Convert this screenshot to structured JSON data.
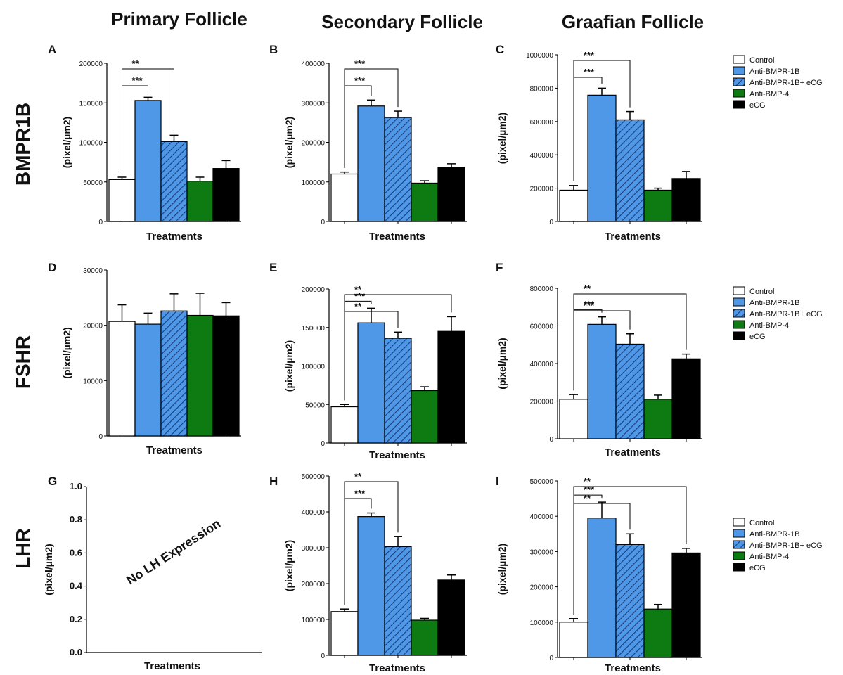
{
  "column_titles": [
    "Primary Follicle",
    "Secondary Follicle",
    "Graafian Follicle"
  ],
  "row_titles": [
    "BMPR1B",
    "FSHR",
    "LHR"
  ],
  "colors": {
    "Control": "#ffffff",
    "Anti-BMPR-1B": "#4f98e8",
    "Anti-BMPR-1B+ eCG": "#4f98e8",
    "Anti-BMP-4": "#0e7a12",
    "eCG": "#000000"
  },
  "legend": [
    "Control",
    "Anti-BMPR-1B",
    "Anti-BMPR-1B+ eCG",
    "Anti-BMP-4",
    "eCG"
  ],
  "chart_data": [
    {
      "panel": "A",
      "type": "bar",
      "xlabel": "Treatments",
      "ylabel": "(pixel/µm2)",
      "categories": [
        "Control",
        "Anti-BMPR-1B",
        "Anti-BMPR-1B+ eCG",
        "Anti-BMP-4",
        "eCG"
      ],
      "values": [
        53000,
        153000,
        101000,
        51000,
        67000
      ],
      "errors": [
        3000,
        4000,
        8000,
        5000,
        10000
      ],
      "ylim": [
        0,
        200000
      ],
      "yticks": [
        0,
        50000,
        100000,
        150000,
        200000
      ],
      "annotations": [
        {
          "label": "***",
          "from": 0,
          "to": 1
        },
        {
          "label": "**",
          "from": 0,
          "to": 2
        }
      ]
    },
    {
      "panel": "B",
      "type": "bar",
      "xlabel": "Treatments",
      "ylabel": "(pixel/µm2)",
      "categories": [
        "Control",
        "Anti-BMPR-1B",
        "Anti-BMPR-1B+ eCG",
        "Anti-BMP-4",
        "eCG"
      ],
      "values": [
        120000,
        292000,
        263000,
        97000,
        137000
      ],
      "errors": [
        5000,
        15000,
        16000,
        6000,
        9000
      ],
      "ylim": [
        0,
        400000
      ],
      "yticks": [
        0,
        100000,
        200000,
        300000,
        400000
      ],
      "annotations": [
        {
          "label": "***",
          "from": 0,
          "to": 1
        },
        {
          "label": "***",
          "from": 0,
          "to": 2
        }
      ]
    },
    {
      "panel": "C",
      "type": "bar",
      "xlabel": "Treatments",
      "ylabel": "(pixel/µm2)",
      "categories": [
        "Control",
        "Anti-BMPR-1B",
        "Anti-BMPR-1B+ eCG",
        "Anti-BMP-4",
        "eCG"
      ],
      "values": [
        188000,
        758000,
        610000,
        188000,
        258000
      ],
      "errors": [
        28000,
        42000,
        50000,
        12000,
        42000
      ],
      "ylim": [
        0,
        1000000
      ],
      "yticks": [
        0,
        200000,
        400000,
        600000,
        800000,
        1000000
      ],
      "annotations": [
        {
          "label": "***",
          "from": 0,
          "to": 1
        },
        {
          "label": "***",
          "from": 0,
          "to": 2
        }
      ]
    },
    {
      "panel": "D",
      "type": "bar",
      "xlabel": "Treatments",
      "ylabel": "(pixel/µm2)",
      "categories": [
        "Control",
        "Anti-BMPR-1B",
        "Anti-BMPR-1B+ eCG",
        "Anti-BMP-4",
        "eCG"
      ],
      "values": [
        20700,
        20200,
        22600,
        21800,
        21700
      ],
      "errors": [
        3000,
        2000,
        3100,
        4000,
        2400
      ],
      "ylim": [
        0,
        30000
      ],
      "yticks": [
        0,
        10000,
        20000,
        30000
      ],
      "annotations": []
    },
    {
      "panel": "E",
      "type": "bar",
      "xlabel": "Treatments",
      "ylabel": "(pixel/µm2)",
      "categories": [
        "Control",
        "Anti-BMPR-1B",
        "Anti-BMPR-1B+ eCG",
        "Anti-BMP-4",
        "eCG"
      ],
      "values": [
        47000,
        156000,
        136000,
        68000,
        145000
      ],
      "errors": [
        3000,
        19000,
        8000,
        5000,
        19000
      ],
      "ylim": [
        0,
        200000
      ],
      "yticks": [
        0,
        50000,
        100000,
        150000,
        200000
      ],
      "annotations": [
        {
          "label": "***",
          "from": 0,
          "to": 1
        },
        {
          "label": "**",
          "from": 0,
          "to": 2
        },
        {
          "label": "**",
          "from": 0,
          "to": 4
        }
      ]
    },
    {
      "panel": "F",
      "type": "bar",
      "xlabel": "Treatments",
      "ylabel": "(pixel/µm2)",
      "categories": [
        "Control",
        "Anti-BMPR-1B",
        "Anti-BMPR-1B+ eCG",
        "Anti-BMP-4",
        "eCG"
      ],
      "values": [
        210000,
        608000,
        503000,
        210000,
        425000
      ],
      "errors": [
        25000,
        40000,
        55000,
        22000,
        25000
      ],
      "ylim": [
        0,
        800000
      ],
      "yticks": [
        0,
        200000,
        400000,
        600000,
        800000
      ],
      "annotations": [
        {
          "label": "***",
          "from": 0,
          "to": 1
        },
        {
          "label": "***",
          "from": 0,
          "to": 2
        },
        {
          "label": "**",
          "from": 0,
          "to": 4
        }
      ]
    },
    {
      "panel": "G",
      "type": "bar",
      "xlabel": "Treatments",
      "ylabel": "(pixel/µm2)",
      "categories": [],
      "values": [],
      "ylim": [
        0,
        1.0
      ],
      "yticks": [
        0.0,
        0.2,
        0.4,
        0.6,
        0.8,
        1.0
      ],
      "note": "No LH Expression",
      "annotations": []
    },
    {
      "panel": "H",
      "type": "bar",
      "xlabel": "Treatments",
      "ylabel": "(pixel/µm2)",
      "categories": [
        "Control",
        "Anti-BMPR-1B",
        "Anti-BMPR-1B+ eCG",
        "Anti-BMP-4",
        "eCG"
      ],
      "values": [
        122000,
        387000,
        303000,
        98000,
        210000
      ],
      "errors": [
        7000,
        10000,
        28000,
        5000,
        14000
      ],
      "ylim": [
        0,
        500000
      ],
      "yticks": [
        0,
        100000,
        200000,
        300000,
        400000,
        500000
      ],
      "annotations": [
        {
          "label": "***",
          "from": 0,
          "to": 1
        },
        {
          "label": "**",
          "from": 0,
          "to": 2
        }
      ]
    },
    {
      "panel": "I",
      "type": "bar",
      "xlabel": "Treatments",
      "ylabel": "(pixel/µm2)",
      "categories": [
        "Control",
        "Anti-BMPR-1B",
        "Anti-BMPR-1B+ eCG",
        "Anti-BMP-4",
        "eCG"
      ],
      "values": [
        100000,
        395000,
        320000,
        137000,
        296000
      ],
      "errors": [
        10000,
        45000,
        30000,
        13000,
        13000
      ],
      "ylim": [
        0,
        500000
      ],
      "yticks": [
        0,
        100000,
        200000,
        300000,
        400000,
        500000
      ],
      "annotations": [
        {
          "label": "***",
          "from": 0,
          "to": 1
        },
        {
          "label": "**",
          "from": 0,
          "to": 2
        },
        {
          "label": "**",
          "from": 0,
          "to": 4
        }
      ]
    }
  ]
}
